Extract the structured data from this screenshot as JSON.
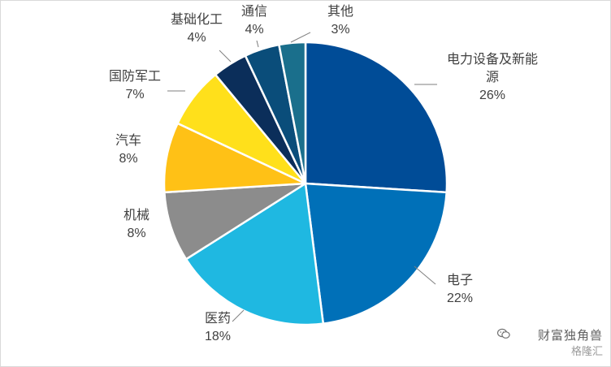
{
  "chart_data": {
    "type": "pie",
    "title": "",
    "slices": [
      {
        "label": "电力设备及新能源",
        "label_lines": [
          "电力设备及新能",
          "源"
        ],
        "value": 26,
        "value_label": "26%",
        "color": "#004C97"
      },
      {
        "label": "电子",
        "label_lines": [
          "电子"
        ],
        "value": 22,
        "value_label": "22%",
        "color": "#0070B8"
      },
      {
        "label": "医药",
        "label_lines": [
          "医药"
        ],
        "value": 18,
        "value_label": "18%",
        "color": "#1FB8E1"
      },
      {
        "label": "机械",
        "label_lines": [
          "机械"
        ],
        "value": 8,
        "value_label": "8%",
        "color": "#8C8C8C"
      },
      {
        "label": "汽车",
        "label_lines": [
          "汽车"
        ],
        "value": 8,
        "value_label": "8%",
        "color": "#FFC116"
      },
      {
        "label": "国防军工",
        "label_lines": [
          "国防军工"
        ],
        "value": 7,
        "value_label": "7%",
        "color": "#FFE01B"
      },
      {
        "label": "基础化工",
        "label_lines": [
          "基础化工"
        ],
        "value": 4,
        "value_label": "4%",
        "color": "#0B2E5A"
      },
      {
        "label": "通信",
        "label_lines": [
          "通信"
        ],
        "value": 4,
        "value_label": "4%",
        "color": "#0A4D7A"
      },
      {
        "label": "其他",
        "label_lines": [
          "其他"
        ],
        "value": 3,
        "value_label": "3%",
        "color": "#1A6F8C"
      }
    ]
  },
  "watermark": {
    "line1": "财富独角兽",
    "line2": "格隆汇",
    "icon": "wechat-icon"
  }
}
